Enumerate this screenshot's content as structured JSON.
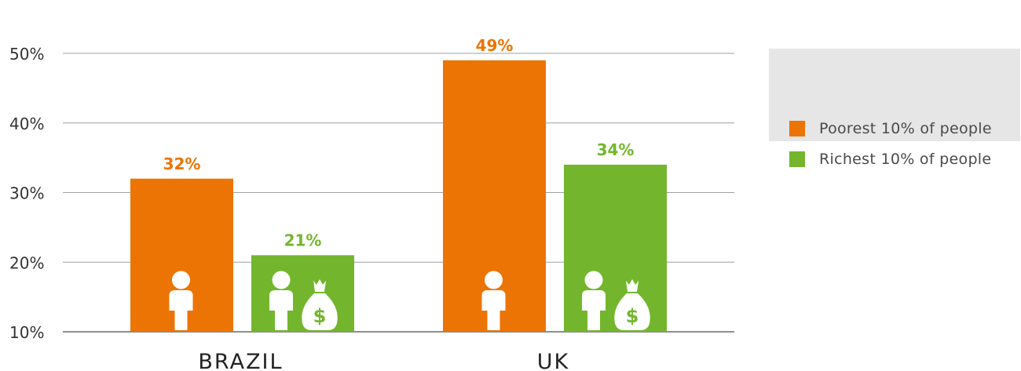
{
  "chart_data": {
    "type": "bar",
    "categories": [
      "BRAZIL",
      "UK"
    ],
    "series": [
      {
        "name": "Poorest 10% of people",
        "values": [
          32,
          49
        ],
        "value_labels": [
          "32%",
          "49%"
        ],
        "color": "#ec7404",
        "icon": "person-icon"
      },
      {
        "name": "Richest 10% of people",
        "values": [
          21,
          34
        ],
        "value_labels": [
          "21%",
          "34%"
        ],
        "color": "#73b62d",
        "icon": "person-money-bag-icon"
      }
    ],
    "y_ticks": [
      10,
      20,
      30,
      40,
      50
    ],
    "y_tick_labels": [
      "10%",
      "20%",
      "30%",
      "40%",
      "50%"
    ],
    "ylim": [
      10,
      50
    ],
    "grid": true,
    "legend_position": "top-right"
  },
  "legend": {
    "items": [
      {
        "label": "Poorest 10% of people",
        "color": "#ec7404"
      },
      {
        "label": "Richest 10% of people",
        "color": "#73b62d"
      }
    ]
  }
}
